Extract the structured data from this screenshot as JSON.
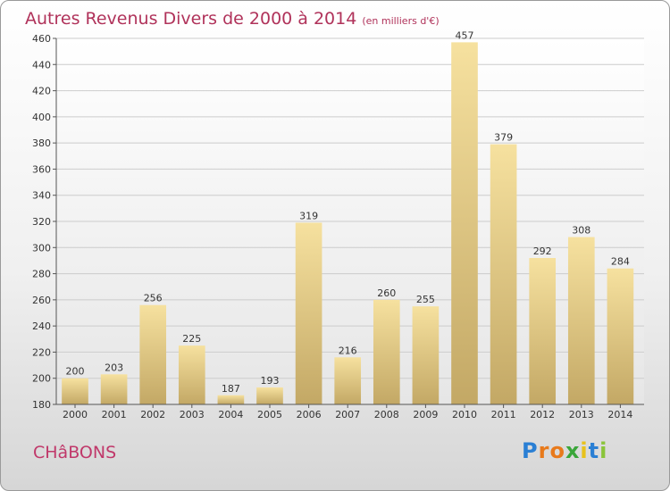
{
  "title": "Autres Revenus Divers de 2000 à 2014",
  "subtitle": "(en milliers d'€)",
  "commune": "CHâBONS",
  "logo": {
    "letters": [
      "P",
      "r",
      "o",
      "x",
      "i",
      "t",
      "i"
    ],
    "colors": [
      "#2a7fd4",
      "#e87a1c",
      "#e87a1c",
      "#3aa63a",
      "#e8c21c",
      "#2a7fd4",
      "#8ac43a"
    ]
  },
  "colors": {
    "title": "#b0325a",
    "bar_light": "#f6e19f",
    "bar_dark": "#c3a865",
    "grid": "#cccccc"
  },
  "chart_data": {
    "type": "bar",
    "title": "Autres Revenus Divers de 2000 à 2014",
    "subtitle": "(en milliers d'€)",
    "categories": [
      "2000",
      "2001",
      "2002",
      "2003",
      "2004",
      "2005",
      "2006",
      "2007",
      "2008",
      "2009",
      "2010",
      "2011",
      "2012",
      "2013",
      "2014"
    ],
    "values": [
      200,
      203,
      256,
      225,
      187,
      193,
      319,
      216,
      260,
      255,
      457,
      379,
      292,
      308,
      284
    ],
    "ylim": [
      180,
      460
    ],
    "yticks": [
      180,
      200,
      220,
      240,
      260,
      280,
      300,
      320,
      340,
      360,
      380,
      400,
      420,
      440,
      460
    ],
    "grid": true,
    "data_labels": true
  }
}
